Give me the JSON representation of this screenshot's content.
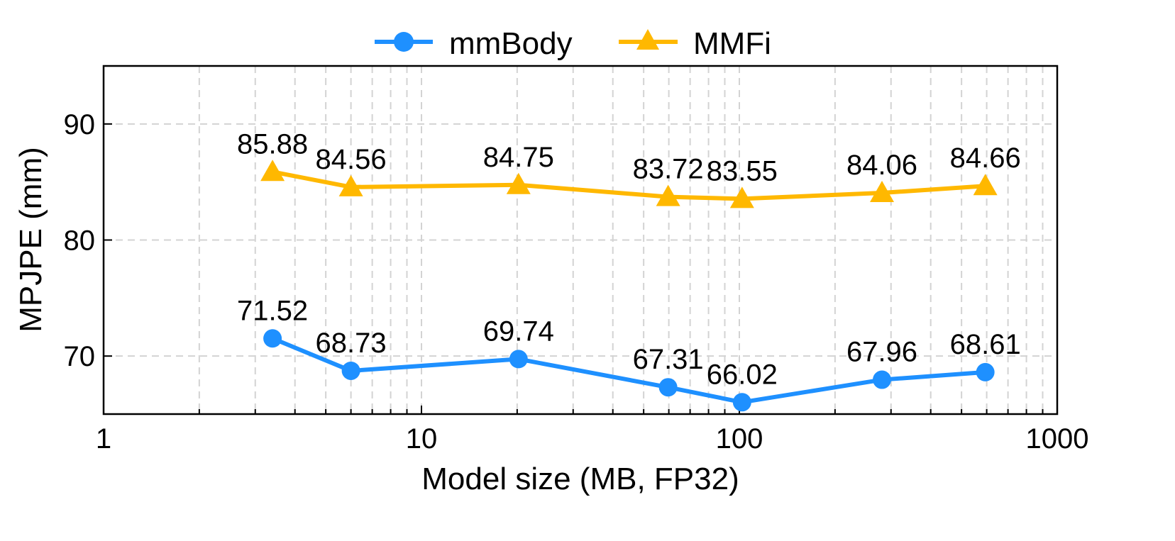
{
  "chart_data": {
    "type": "line",
    "title": "",
    "xlabel": "Model size (MB, FP32)",
    "ylabel": "MPJPE (mm)",
    "xscale": "log",
    "xlim": [
      1,
      1000
    ],
    "ylim": [
      65,
      95
    ],
    "xticks": [
      1,
      10,
      100,
      1000
    ],
    "xtick_labels": [
      "1",
      "10",
      "100",
      "1000"
    ],
    "yticks": [
      70,
      80,
      90
    ],
    "ytick_labels": [
      "70",
      "80",
      "90"
    ],
    "grid": true,
    "legend_position": "top-center-outside",
    "x": [
      3.4,
      6.0,
      20.2,
      59.7,
      102,
      281,
      594
    ],
    "series": [
      {
        "name": "mmBody",
        "color": "#1E90FF",
        "marker": "circle",
        "values": [
          71.52,
          68.73,
          69.74,
          67.31,
          66.02,
          67.96,
          68.61
        ],
        "labels": [
          "71.52",
          "68.73",
          "69.74",
          "67.31",
          "66.02",
          "67.96",
          "68.61"
        ]
      },
      {
        "name": "MMFi",
        "color": "#FFB800",
        "marker": "triangle",
        "values": [
          85.88,
          84.56,
          84.75,
          83.72,
          83.55,
          84.06,
          84.66
        ],
        "labels": [
          "85.88",
          "84.56",
          "84.75",
          "83.72",
          "83.55",
          "84.06",
          "84.66"
        ]
      }
    ]
  }
}
